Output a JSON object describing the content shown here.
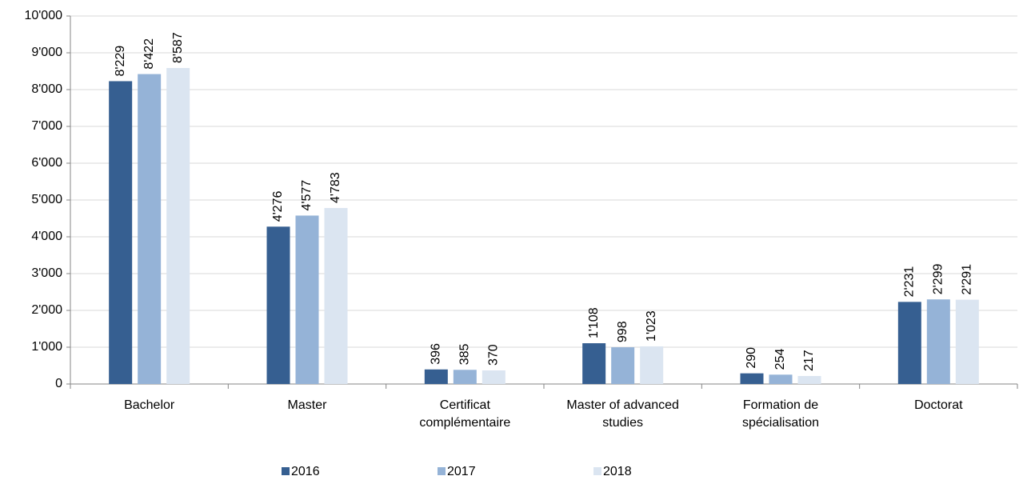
{
  "chart_data": {
    "type": "bar",
    "categories": [
      "Bachelor",
      "Master",
      "Certificat complémentaire",
      "Master of advanced studies",
      "Formation de spécialisation",
      "Doctorat"
    ],
    "series": [
      {
        "name": "2016",
        "color": "#365f91",
        "values": [
          8229,
          4276,
          396,
          1108,
          290,
          2231
        ],
        "value_labels": [
          "8'229",
          "4'276",
          "396",
          "1'108",
          "290",
          "2'231"
        ]
      },
      {
        "name": "2017",
        "color": "#95b3d7",
        "values": [
          8422,
          4577,
          385,
          998,
          254,
          2299
        ],
        "value_labels": [
          "8'422",
          "4'577",
          "385",
          "998",
          "254",
          "2'299"
        ]
      },
      {
        "name": "2018",
        "color": "#dbe5f1",
        "values": [
          8587,
          4783,
          370,
          1023,
          217,
          2291
        ],
        "value_labels": [
          "8'587",
          "4'783",
          "370",
          "1'023",
          "217",
          "2'291"
        ]
      }
    ],
    "ylim": [
      0,
      10000
    ],
    "yticks": [
      0,
      {
        "value": 1000,
        "label": "1'000"
      },
      {
        "value": 2000,
        "label": "2'000"
      },
      {
        "value": 3000,
        "label": "3'000"
      },
      {
        "value": 4000,
        "label": "4'000"
      },
      {
        "value": 5000,
        "label": "5'000"
      },
      {
        "value": 6000,
        "label": "6'000"
      },
      {
        "value": 7000,
        "label": "7'000"
      },
      {
        "value": 8000,
        "label": "8'000"
      },
      {
        "value": 9000,
        "label": "9'000"
      },
      {
        "value": 10000,
        "label": "10'000"
      }
    ],
    "grid": true,
    "legend": "bottom"
  }
}
